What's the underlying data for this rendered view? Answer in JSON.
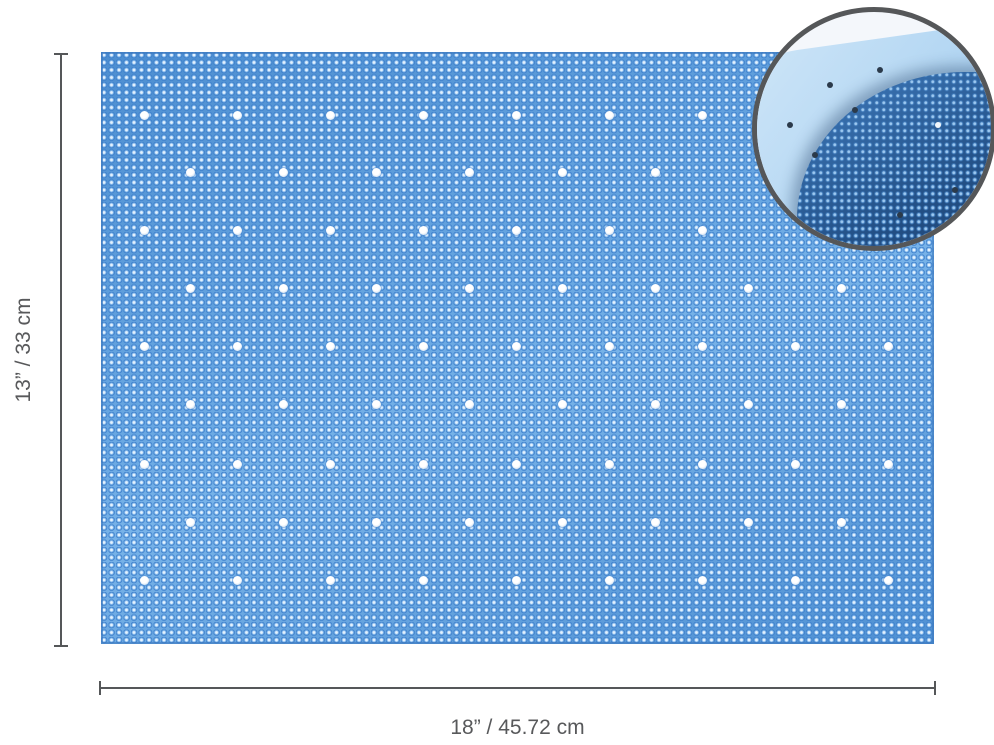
{
  "product_image": {
    "colors": {
      "mat": "#5b9ad6",
      "dimension_line": "#555759",
      "label_text": "#58595b",
      "inset_border": "#555759"
    }
  },
  "dimensions": {
    "width_label": "18” / 45.72 cm",
    "height_label": "13” / 33 cm"
  }
}
